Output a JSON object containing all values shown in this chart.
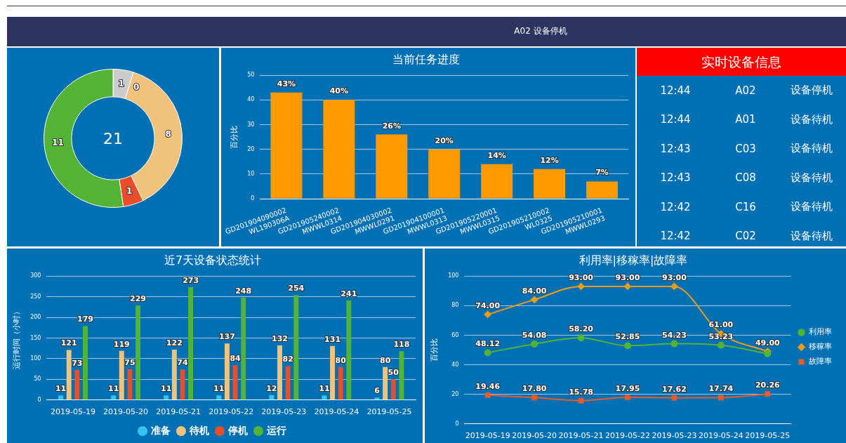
{
  "chart_data": [
    {
      "type": "other",
      "title": "A02 设备停机"
    },
    {
      "type": "donut",
      "categories": [
        null,
        null,
        null,
        null,
        null
      ],
      "values": [
        1,
        0,
        8,
        1,
        11
      ],
      "value_labels": [
        "1",
        "0",
        "8",
        "1",
        "11"
      ],
      "colors": [
        "#cccccc",
        "#33c5ee",
        "#f0c27b",
        "#e94e2a",
        "#52b334"
      ],
      "legend": false,
      "annotations": [
        "21"
      ]
    },
    {
      "type": "bar",
      "title": "当前任务进度",
      "ylabel": "百分比",
      "categories": [
        "GD201904090002 WL190306A",
        "GD201905240002 MWWL0314",
        "GD201904030002 MWWL0291",
        "GD201904100001 MWWL0313",
        "GD201905220001 MWWL0315",
        "GD201905210002 WL0325",
        "GD201905210001 MWWL0293"
      ],
      "values": [
        43,
        40,
        26,
        20,
        14,
        12,
        7
      ],
      "value_labels": [
        "43%",
        "40%",
        "26%",
        "20%",
        "14%",
        "12%",
        "7%"
      ],
      "color": "#ff9900",
      "ylim": [
        0,
        50
      ],
      "yticks": [
        0,
        10,
        20,
        30,
        40,
        50
      ],
      "grid": "y",
      "legend": false
    },
    {
      "type": "other",
      "title": "实时设备信息",
      "annotations": [
        "12:44",
        "A02",
        "设备停机",
        "12:44",
        "A01",
        "设备待机",
        "12:43",
        "C03",
        "设备待机",
        "12:43",
        "C08",
        "设备待机",
        "12:42",
        "C16",
        "设备待机",
        "12:42",
        "C02",
        "设备待机"
      ]
    },
    {
      "type": "bar",
      "title": "近7天设备状态统计",
      "ylabel": "运行时间（小时）",
      "categories": [
        "2019-05-19",
        "2019-05-20",
        "2019-05-21",
        "2019-05-22",
        "2019-05-23",
        "2019-05-24",
        "2019-05-25"
      ],
      "ylim": [
        0,
        300
      ],
      "yticks": [
        0,
        50,
        100,
        150,
        200,
        250,
        300
      ],
      "grid": "y",
      "legend": "bottom",
      "marker": "circle",
      "data_labels": true,
      "series": [
        {
          "name": "准备",
          "color": "#33c5ee",
          "values": [
            11,
            11,
            11,
            11,
            12,
            11,
            6
          ]
        },
        {
          "name": "待机",
          "color": "#f0c27b",
          "values": [
            121,
            119,
            122,
            137,
            132,
            131,
            80
          ]
        },
        {
          "name": "停机",
          "color": "#e94e2a",
          "values": [
            73,
            75,
            74,
            84,
            82,
            80,
            50
          ]
        },
        {
          "name": "运行",
          "color": "#52b334",
          "values": [
            179,
            229,
            273,
            248,
            254,
            241,
            118
          ]
        }
      ]
    },
    {
      "type": "line",
      "title": "利用率|移稼率|故障率",
      "ylabel": "百分比",
      "categories": [
        "2019-05-19",
        "2019-05-20",
        "2019-05-21",
        "2019-05-22",
        "2019-05-23",
        "2019-05-24",
        "2019-05-25"
      ],
      "ylim": [
        0,
        100
      ],
      "yticks": [
        0,
        20,
        40,
        60,
        80,
        100
      ],
      "grid": "y",
      "legend": "right",
      "series": [
        {
          "name": "利用率",
          "color": "#52b334",
          "marker": "circle",
          "values": [
            48.12,
            54.08,
            58.2,
            52.85,
            54.23,
            53.23,
            47.5
          ],
          "value_labels": [
            "48.12",
            "54.08",
            "58.20",
            "52.85",
            "54.23",
            "53.23",
            null
          ]
        },
        {
          "name": "移稼率",
          "color": "#f39c12",
          "marker": "diamond",
          "values": [
            74,
            84,
            93,
            93,
            93,
            61,
            49
          ],
          "value_labels": [
            "74.00",
            "84.00",
            "93.00",
            "93.00",
            "93.00",
            "61.00",
            "49.00"
          ]
        },
        {
          "name": "故障率",
          "color": "#e95b27",
          "marker": "square",
          "values": [
            19.46,
            17.8,
            15.78,
            17.95,
            17.62,
            17.74,
            20.26
          ],
          "value_labels": [
            "19.46",
            "17.80",
            "15.78",
            "17.95",
            "17.62",
            "17.74",
            "20.26"
          ]
        }
      ]
    }
  ]
}
